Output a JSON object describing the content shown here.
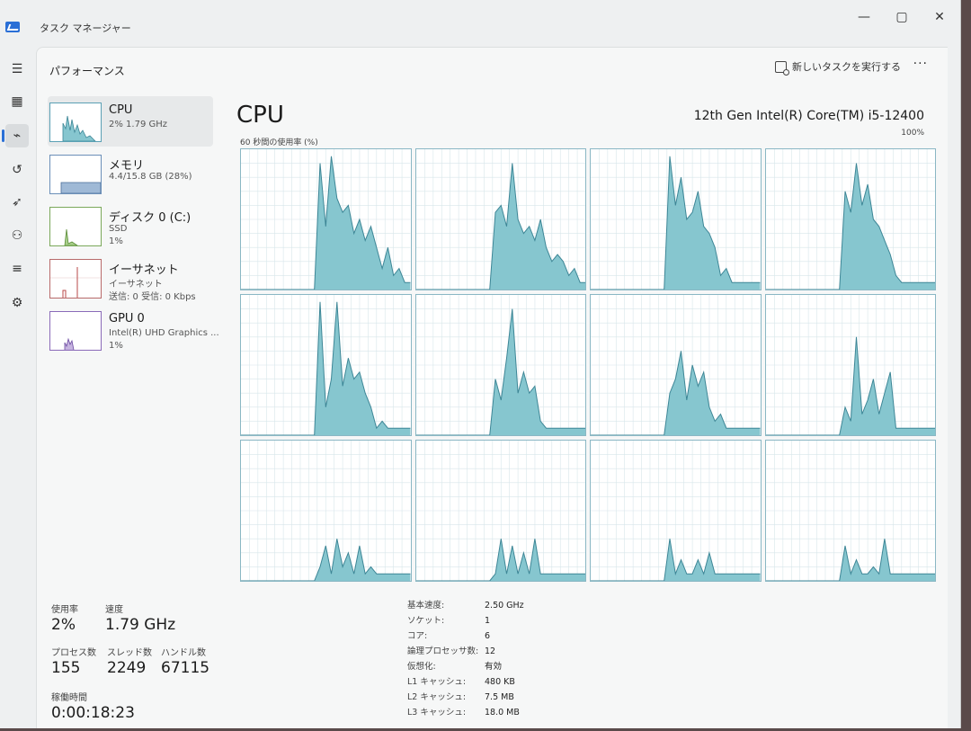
{
  "window": {
    "title": "タスク マネージャー",
    "minimize": "—",
    "maximize": "▢",
    "close": "✕"
  },
  "nav": {
    "items": [
      {
        "name": "menu-icon",
        "glyph": "☰"
      },
      {
        "name": "processes-icon",
        "glyph": "▦"
      },
      {
        "name": "performance-icon",
        "glyph": "⌁"
      },
      {
        "name": "app-history-icon",
        "glyph": "↺"
      },
      {
        "name": "startup-apps-icon",
        "glyph": "➶"
      },
      {
        "name": "users-icon",
        "glyph": "⚇"
      },
      {
        "name": "details-icon",
        "glyph": "≡"
      },
      {
        "name": "services-icon",
        "glyph": "⚙"
      }
    ]
  },
  "header": {
    "title": "パフォーマンス",
    "run_task": "新しいタスクを実行する",
    "more": "···"
  },
  "resources": [
    {
      "name": "CPU",
      "sub1": "2%  1.79 GHz",
      "sub2": ""
    },
    {
      "name": "メモリ",
      "sub1": "4.4/15.8 GB (28%)",
      "sub2": ""
    },
    {
      "name": "ディスク 0 (C:)",
      "sub1": "SSD",
      "sub2": "1%"
    },
    {
      "name": "イーサネット",
      "sub1": "イーサネット",
      "sub2": "送信: 0  受信: 0 Kbps"
    },
    {
      "name": "GPU 0",
      "sub1": "Intel(R) UHD Graphics ...",
      "sub2": "1%"
    }
  ],
  "cpu": {
    "title": "CPU",
    "model": "12th Gen Intel(R) Core(TM) i5-12400",
    "util_label": "60 秒間の使用率 (%)",
    "max_label": "100%"
  },
  "colors": {
    "accent": "#2a6fd6",
    "graph_fill": "#86c6cf",
    "graph_line": "#3d8696",
    "grid": "#d7e6ea"
  },
  "stats": {
    "usage_label": "使用率",
    "usage": "2%",
    "speed_label": "速度",
    "speed": "1.79 GHz",
    "processes_label": "プロセス数",
    "processes": "155",
    "threads_label": "スレッド数",
    "threads": "2249",
    "handles_label": "ハンドル数",
    "handles": "67115",
    "uptime_label": "稼働時間",
    "uptime": "0:00:18:23"
  },
  "specs": [
    {
      "key": "基本速度:",
      "val": "2.50 GHz"
    },
    {
      "key": "ソケット:",
      "val": "1"
    },
    {
      "key": "コア:",
      "val": "6"
    },
    {
      "key": "論理プロセッサ数:",
      "val": "12"
    },
    {
      "key": "仮想化:",
      "val": "有効"
    },
    {
      "key": "L1 キャッシュ:",
      "val": "480 KB"
    },
    {
      "key": "L2 キャッシュ:",
      "val": "7.5 MB"
    },
    {
      "key": "L3 キャッシュ:",
      "val": "18.0 MB"
    }
  ],
  "chart_data": {
    "type": "area",
    "title": "CPU",
    "ylabel": "60 秒間の使用率 (%)",
    "ylim": [
      0,
      100
    ],
    "x": [
      60,
      58,
      56,
      54,
      52,
      50,
      48,
      46,
      44,
      42,
      40,
      38,
      36,
      34,
      32,
      30,
      28,
      26,
      24,
      22,
      20,
      18,
      16,
      14,
      12,
      10,
      8,
      6,
      4,
      2,
      0
    ],
    "series": [
      {
        "values": [
          0,
          0,
          0,
          0,
          0,
          0,
          0,
          0,
          0,
          0,
          0,
          0,
          0,
          0,
          90,
          45,
          95,
          65,
          55,
          60,
          40,
          50,
          35,
          45,
          30,
          15,
          30,
          10,
          15,
          5,
          5
        ]
      },
      {
        "values": [
          0,
          0,
          0,
          0,
          0,
          0,
          0,
          0,
          0,
          0,
          0,
          0,
          0,
          0,
          55,
          60,
          45,
          90,
          50,
          40,
          45,
          35,
          50,
          30,
          20,
          25,
          20,
          10,
          15,
          5,
          5
        ]
      },
      {
        "values": [
          0,
          0,
          0,
          0,
          0,
          0,
          0,
          0,
          0,
          0,
          0,
          0,
          0,
          0,
          95,
          60,
          80,
          50,
          55,
          70,
          45,
          40,
          30,
          10,
          15,
          5,
          5,
          5,
          5,
          5,
          5
        ]
      },
      {
        "values": [
          0,
          0,
          0,
          0,
          0,
          0,
          0,
          0,
          0,
          0,
          0,
          0,
          0,
          0,
          70,
          55,
          90,
          60,
          75,
          50,
          45,
          35,
          25,
          10,
          5,
          5,
          5,
          5,
          5,
          5,
          5
        ]
      },
      {
        "values": [
          0,
          0,
          0,
          0,
          0,
          0,
          0,
          0,
          0,
          0,
          0,
          0,
          0,
          0,
          95,
          20,
          40,
          95,
          35,
          55,
          40,
          45,
          30,
          20,
          5,
          10,
          5,
          5,
          5,
          5,
          5
        ]
      },
      {
        "values": [
          0,
          0,
          0,
          0,
          0,
          0,
          0,
          0,
          0,
          0,
          0,
          0,
          0,
          0,
          40,
          25,
          55,
          90,
          30,
          45,
          30,
          35,
          10,
          5,
          5,
          5,
          5,
          5,
          5,
          5,
          5
        ]
      },
      {
        "values": [
          0,
          0,
          0,
          0,
          0,
          0,
          0,
          0,
          0,
          0,
          0,
          0,
          0,
          0,
          30,
          40,
          60,
          25,
          50,
          35,
          45,
          20,
          10,
          15,
          5,
          5,
          5,
          5,
          5,
          5,
          5
        ]
      },
      {
        "values": [
          0,
          0,
          0,
          0,
          0,
          0,
          0,
          0,
          0,
          0,
          0,
          0,
          0,
          0,
          20,
          10,
          70,
          15,
          25,
          40,
          15,
          30,
          45,
          5,
          5,
          5,
          5,
          5,
          5,
          5,
          5
        ]
      },
      {
        "values": [
          0,
          0,
          0,
          0,
          0,
          0,
          0,
          0,
          0,
          0,
          0,
          0,
          0,
          0,
          10,
          25,
          5,
          30,
          10,
          20,
          5,
          25,
          5,
          10,
          5,
          5,
          5,
          5,
          5,
          5,
          5
        ]
      },
      {
        "values": [
          0,
          0,
          0,
          0,
          0,
          0,
          0,
          0,
          0,
          0,
          0,
          0,
          0,
          0,
          5,
          30,
          5,
          25,
          5,
          20,
          5,
          30,
          5,
          5,
          5,
          5,
          5,
          5,
          5,
          5,
          5
        ]
      },
      {
        "values": [
          0,
          0,
          0,
          0,
          0,
          0,
          0,
          0,
          0,
          0,
          0,
          0,
          0,
          0,
          30,
          5,
          15,
          5,
          5,
          15,
          5,
          20,
          5,
          5,
          5,
          5,
          5,
          5,
          5,
          5,
          5
        ]
      },
      {
        "values": [
          0,
          0,
          0,
          0,
          0,
          0,
          0,
          0,
          0,
          0,
          0,
          0,
          0,
          0,
          25,
          5,
          15,
          5,
          5,
          10,
          5,
          30,
          5,
          5,
          5,
          5,
          5,
          5,
          5,
          5,
          5
        ]
      }
    ],
    "grid": true
  }
}
